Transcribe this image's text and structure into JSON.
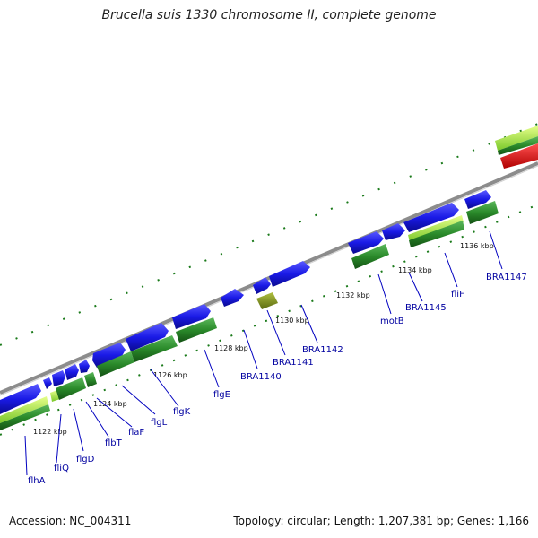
{
  "title": "Brucella suis 1330 chromosome II, complete genome",
  "footer": {
    "accession": "Accession: NC_004311",
    "topology": "Topology: circular;",
    "length": "Length: 1,207,381 bp;",
    "genes": "Genes: 1,166"
  },
  "colors": {
    "cds_forward": "#1a1ae6",
    "cds_reverse": "#2a8a2a",
    "gc_band": "#a8e63c",
    "backbone": "#8c8c8c",
    "red_feature": "#e61414",
    "olive_feature": "#7a8a1a",
    "label": "#0000a0"
  },
  "kbp_ticks": [
    "1122 kbp",
    "1124 kbp",
    "1126 kbp",
    "1128 kbp",
    "1130 kbp",
    "1132 kbp",
    "1134 kbp",
    "1136 kbp"
  ],
  "gene_labels": [
    "flhA",
    "fliQ",
    "flgD",
    "flbT",
    "flaF",
    "flgL",
    "flgK",
    "flgE",
    "BRA1140",
    "BRA1141",
    "BRA1142",
    "motB",
    "BRA1145",
    "fliF",
    "BRA1147"
  ]
}
